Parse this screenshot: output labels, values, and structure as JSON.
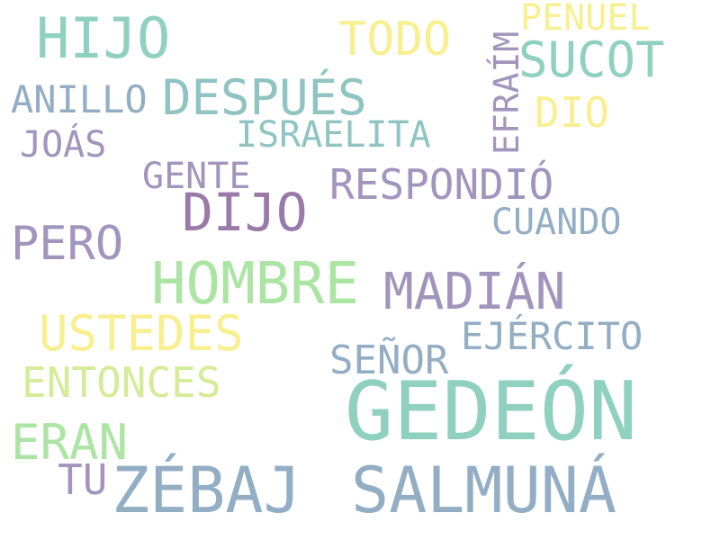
{
  "palette": {
    "teal": "#8fd1be",
    "yellow": "#f8ef90",
    "slate": "#93aec4",
    "lavender": "#a295bd",
    "purple": "#9a7aa8",
    "green": "#abe4a3",
    "lime": "#d4ec98",
    "sea": "#8fc4c3"
  },
  "words": [
    {
      "id": "hijo",
      "text": "HIJO",
      "color": "#8fd1be"
    },
    {
      "id": "todo",
      "text": "TODO",
      "color": "#f8ef90"
    },
    {
      "id": "penuel",
      "text": "PENUEL",
      "color": "#f8ef90"
    },
    {
      "id": "sucot",
      "text": "SUCOT",
      "color": "#8fd1be"
    },
    {
      "id": "efraim",
      "text": "EFRAÍM",
      "color": "#a295bd"
    },
    {
      "id": "anillo",
      "text": "ANILLO",
      "color": "#93aec4"
    },
    {
      "id": "despues",
      "text": "DESPUÉS",
      "color": "#8fc4c3"
    },
    {
      "id": "dio",
      "text": "DIO",
      "color": "#f8ef90"
    },
    {
      "id": "israelita",
      "text": "ISRAELITA",
      "color": "#8fc4c3"
    },
    {
      "id": "joas",
      "text": "JOÁS",
      "color": "#a295bd"
    },
    {
      "id": "gente",
      "text": "GENTE",
      "color": "#a295bd"
    },
    {
      "id": "respondio",
      "text": "RESPONDIÓ",
      "color": "#a295bd"
    },
    {
      "id": "dijo",
      "text": "DIJO",
      "color": "#9a7aa8"
    },
    {
      "id": "cuando",
      "text": "CUANDO",
      "color": "#93aec4"
    },
    {
      "id": "pero",
      "text": "PERO",
      "color": "#a295bd"
    },
    {
      "id": "hombre",
      "text": "HOMBRE",
      "color": "#abe4a3"
    },
    {
      "id": "madian",
      "text": "MADIÁN",
      "color": "#a295bd"
    },
    {
      "id": "ustedes",
      "text": "USTEDES",
      "color": "#f8ef90"
    },
    {
      "id": "ejercito",
      "text": "EJÉRCITO",
      "color": "#93aec4"
    },
    {
      "id": "senor",
      "text": "SEÑOR",
      "color": "#93aec4"
    },
    {
      "id": "entonces",
      "text": "ENTONCES",
      "color": "#d4ec98"
    },
    {
      "id": "gedeon",
      "text": "GEDEÓN",
      "color": "#8fd1be"
    },
    {
      "id": "eran",
      "text": "ERAN",
      "color": "#abe4a3"
    },
    {
      "id": "tu",
      "text": "TU",
      "color": "#a295bd"
    },
    {
      "id": "zebaj",
      "text": "ZÉBAJ",
      "color": "#93aec4"
    },
    {
      "id": "salmuna",
      "text": "SALMUNÁ",
      "color": "#93aec4"
    }
  ]
}
